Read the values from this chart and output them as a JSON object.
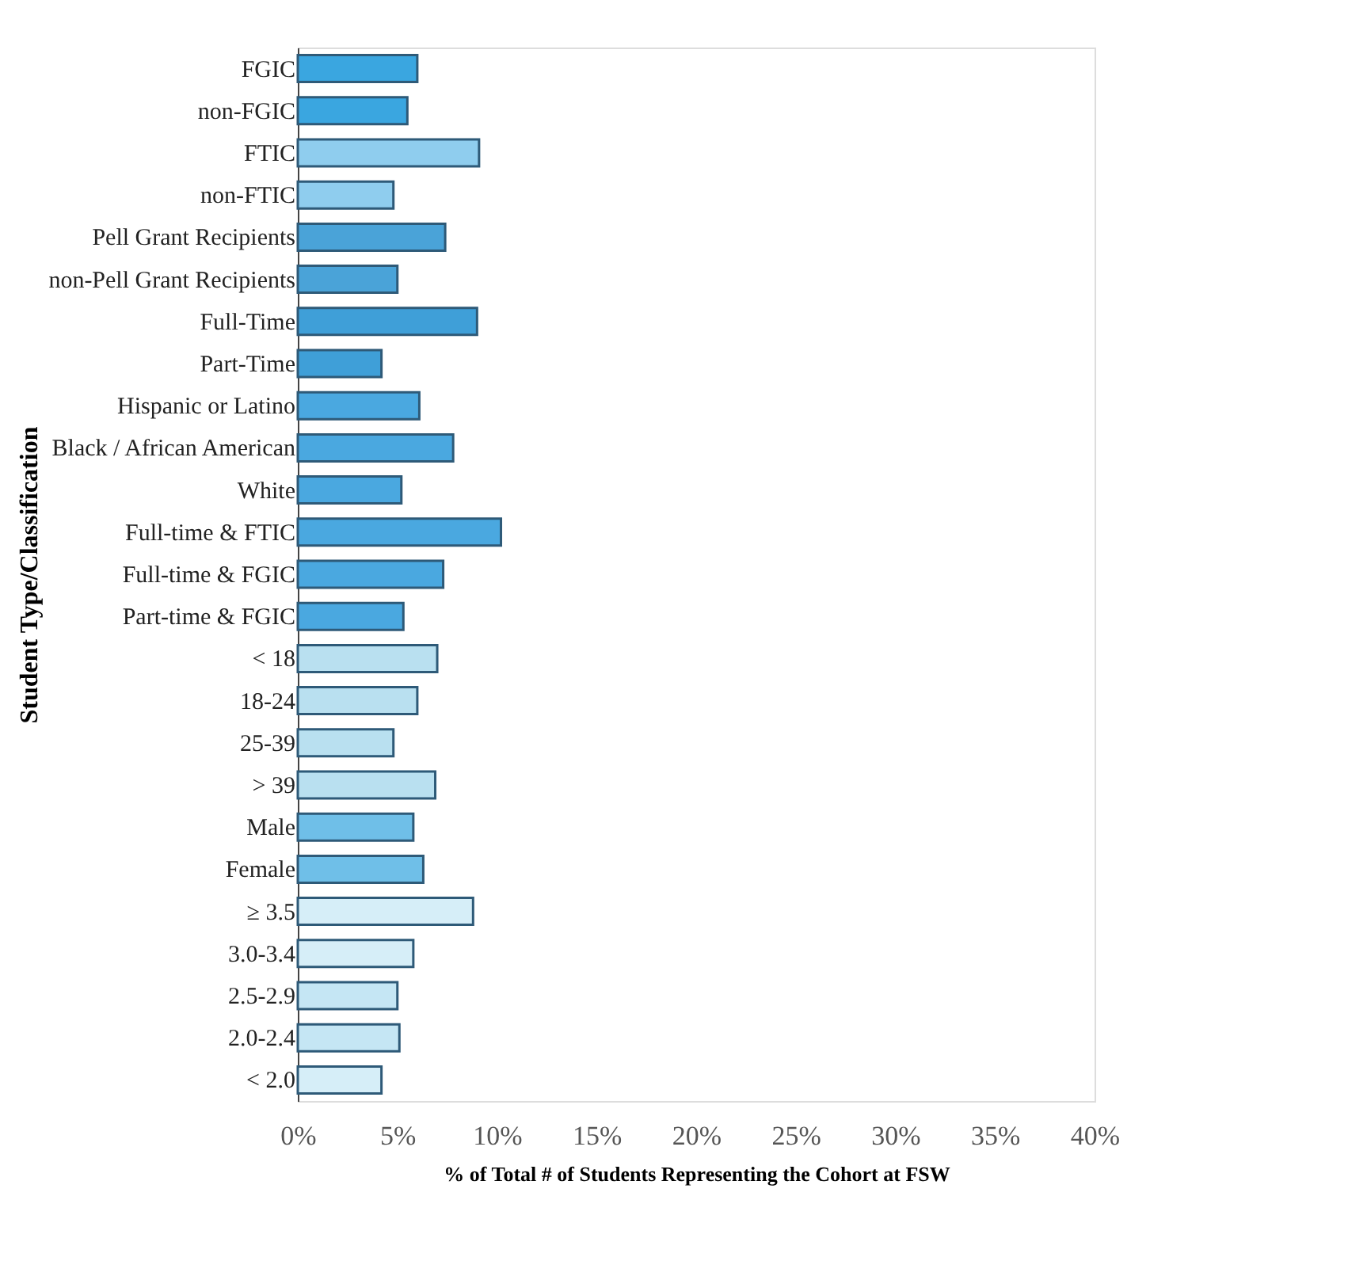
{
  "chart_data": {
    "type": "bar",
    "orientation": "horizontal",
    "ylabel": "Student Type/Classification",
    "xlabel": "% of Total # of Students Representing the Cohort at FSW",
    "categories": [
      "FGIC",
      "non-FGIC",
      "FTIC",
      "non-FTIC",
      "Pell Grant Recipients",
      "non-Pell Grant Recipients",
      "Full-Time",
      "Part-Time",
      "Hispanic or Latino",
      "Black / African American",
      "White",
      "Full-time & FTIC",
      "Full-time & FGIC",
      "Part-time & FGIC",
      "< 18",
      "18-24",
      "25-39",
      "> 39",
      "Male",
      "Female",
      "≥ 3.5",
      "3.0-3.4",
      "2.5-2.9",
      "2.0-2.4",
      "< 2.0"
    ],
    "values": [
      6.0,
      5.5,
      9.1,
      4.8,
      7.4,
      5.0,
      9.0,
      4.2,
      6.1,
      7.8,
      5.2,
      10.2,
      7.3,
      5.3,
      7.0,
      6.0,
      4.8,
      6.9,
      5.8,
      6.3,
      8.8,
      5.8,
      5.0,
      5.1,
      4.2
    ],
    "colors": [
      "#3aa6e0",
      "#3aa6e0",
      "#8fcdee",
      "#8fcdee",
      "#4aa3d8",
      "#4aa3d8",
      "#3f9fd8",
      "#3f9fd8",
      "#4aa8e0",
      "#4aa8e0",
      "#4aa8e0",
      "#4aa8e0",
      "#4aa8e0",
      "#4aa8e0",
      "#b9e0f0",
      "#b9e0f0",
      "#b9e0f0",
      "#b9e0f0",
      "#6fbfe8",
      "#6fbfe8",
      "#d6eef8",
      "#d6eef8",
      "#c5e6f4",
      "#c5e6f4",
      "#d6eef8"
    ],
    "xlim": [
      0,
      40
    ],
    "xticks": [
      {
        "value": 0,
        "label": "0%"
      },
      {
        "value": 5,
        "label": "5%"
      },
      {
        "value": 10,
        "label": "10%"
      },
      {
        "value": 15,
        "label": "15%"
      },
      {
        "value": 20,
        "label": "20%"
      },
      {
        "value": 25,
        "label": "25%"
      },
      {
        "value": 30,
        "label": "30%"
      },
      {
        "value": 35,
        "label": "35%"
      },
      {
        "value": 40,
        "label": "40%"
      }
    ],
    "grid": false
  }
}
